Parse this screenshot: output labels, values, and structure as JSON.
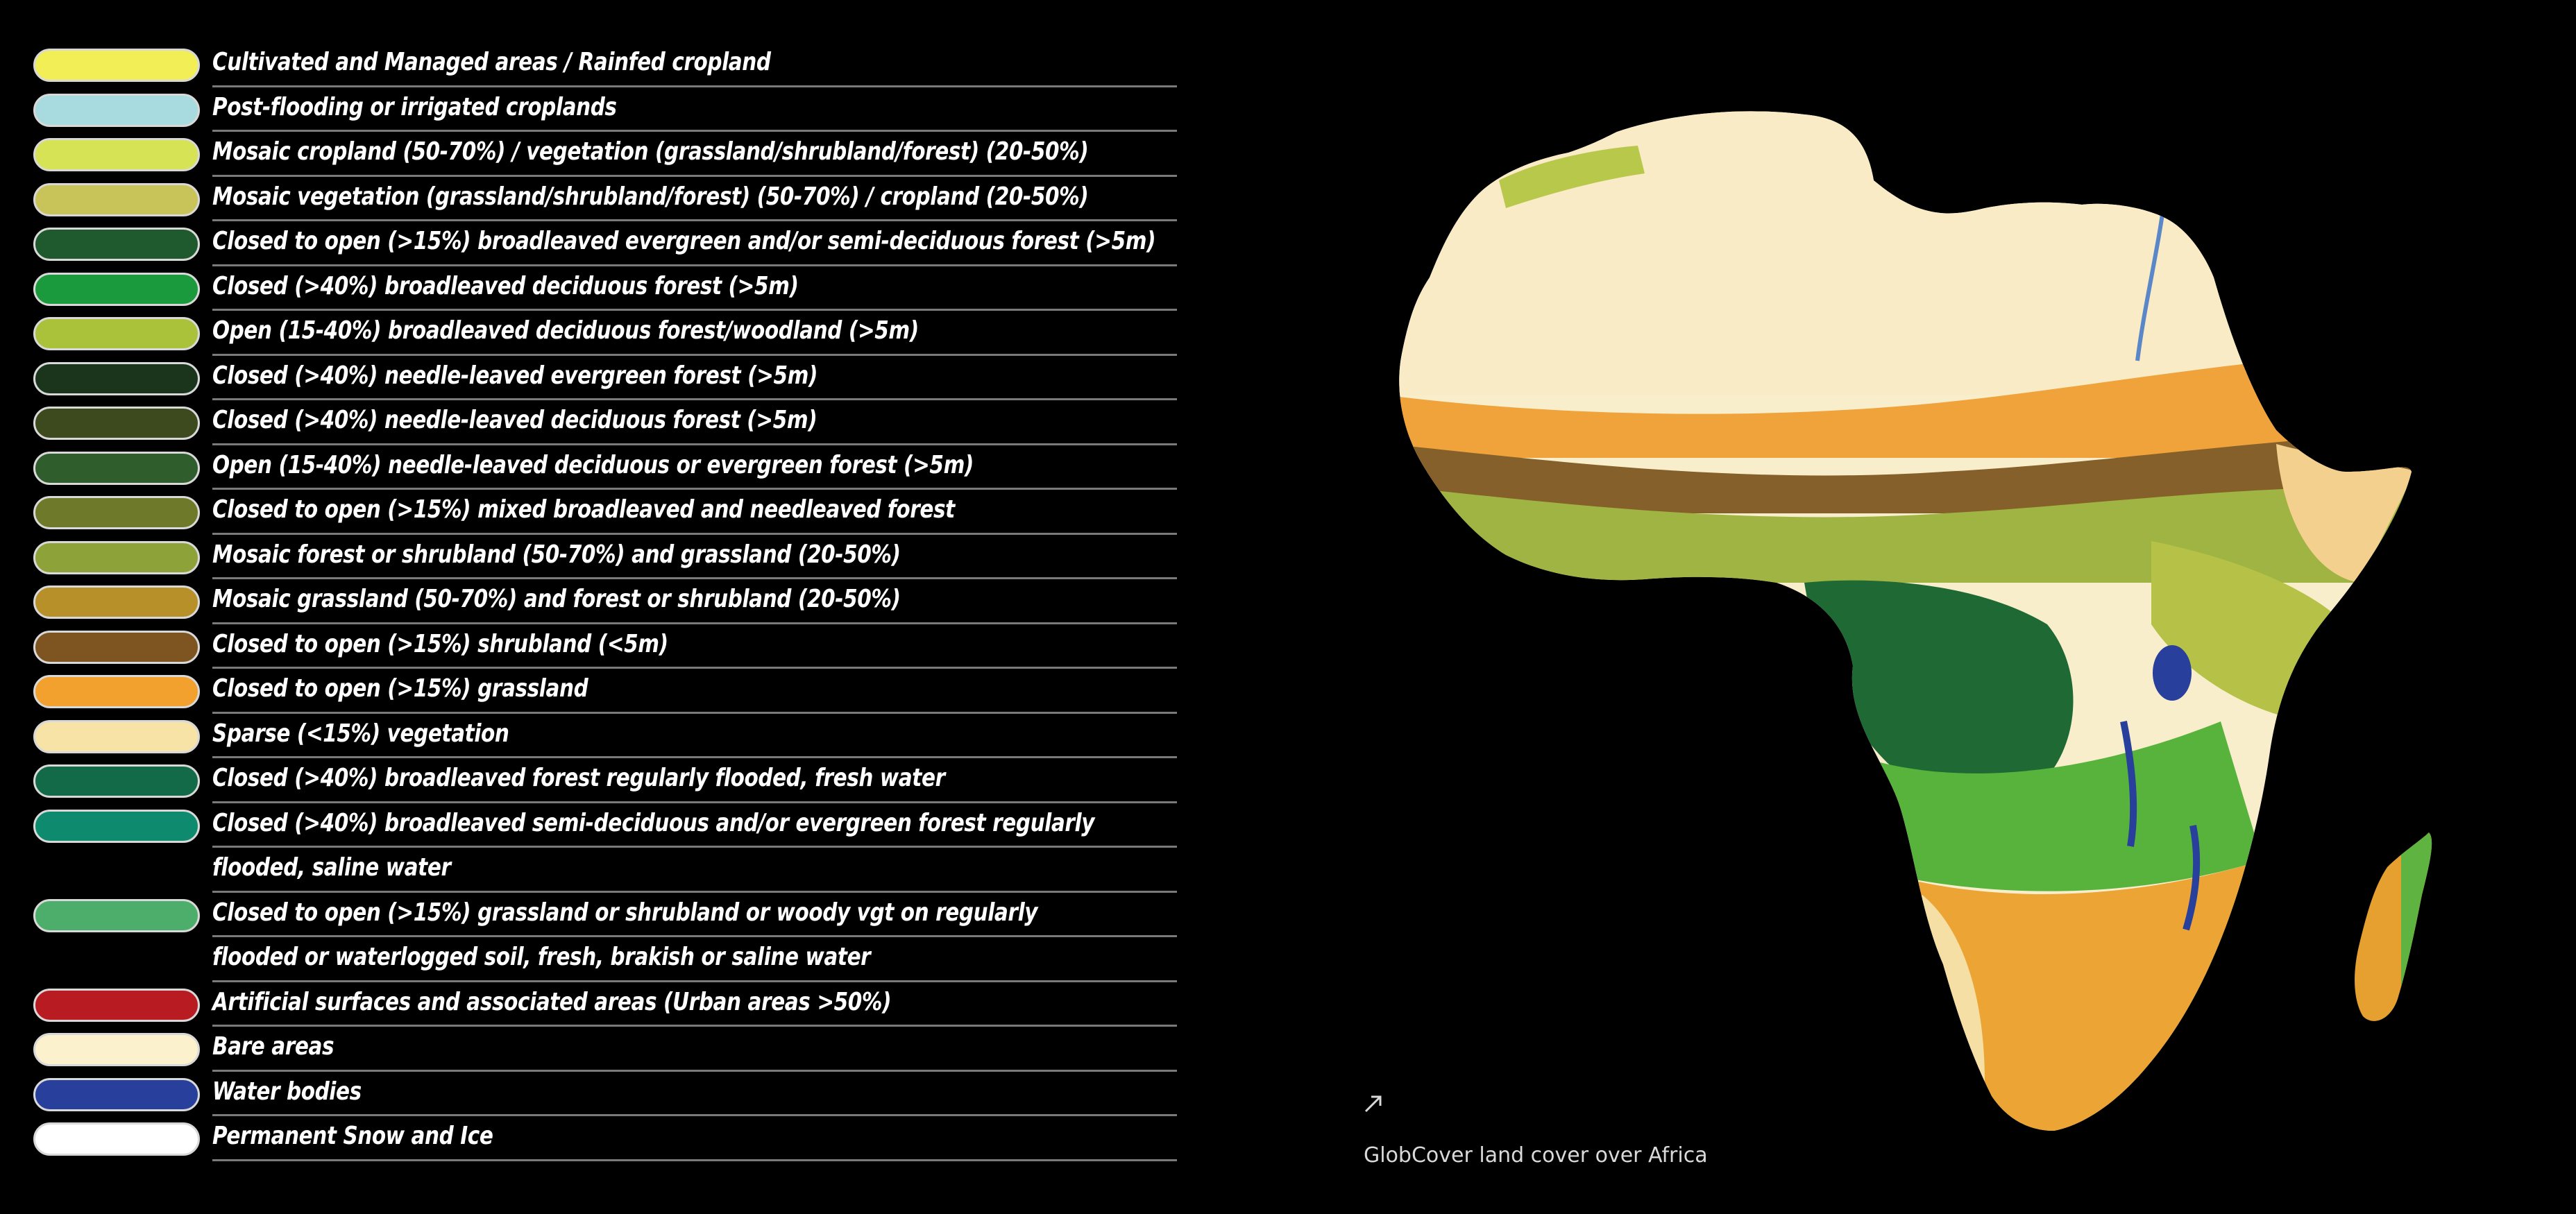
{
  "legend": [
    {
      "lines": [
        "Cultivated and Managed areas / Rainfed cropland"
      ],
      "color": "#f2ee55"
    },
    {
      "lines": [
        "Post-flooding or irrigated croplands"
      ],
      "color": "#a8dbe0"
    },
    {
      "lines": [
        "Mosaic cropland (50-70%) / vegetation (grassland/shrubland/forest) (20-50%)"
      ],
      "color": "#d6e354"
    },
    {
      "lines": [
        "Mosaic vegetation (grassland/shrubland/forest) (50-70%) / cropland (20-50%)"
      ],
      "color": "#c9c45a"
    },
    {
      "lines": [
        "Closed to open (>15%) broadleaved evergreen and/or semi-deciduous forest (>5m)"
      ],
      "color": "#1e5a2e"
    },
    {
      "lines": [
        "Closed (>40%) broadleaved deciduous forest (>5m)"
      ],
      "color": "#1a9a3c"
    },
    {
      "lines": [
        "Open (15-40%) broadleaved deciduous forest/woodland (>5m)"
      ],
      "color": "#a9c23a"
    },
    {
      "lines": [
        "Closed (>40%) needle-leaved evergreen forest (>5m)"
      ],
      "color": "#1a351c"
    },
    {
      "lines": [
        "Closed (>40%) needle-leaved deciduous forest (>5m)"
      ],
      "color": "#3c4a1e"
    },
    {
      "lines": [
        "Open (15-40%) needle-leaved deciduous or evergreen forest (>5m)"
      ],
      "color": "#2f5e2c"
    },
    {
      "lines": [
        "Closed to open (>15%) mixed broadleaved and needleaved forest"
      ],
      "color": "#6e7a2a"
    },
    {
      "lines": [
        "Mosaic forest or shrubland (50-70%) and grassland (20-50%)"
      ],
      "color": "#8ea23a"
    },
    {
      "lines": [
        "Mosaic grassland (50-70%) and forest or shrubland (20-50%)"
      ],
      "color": "#b8902a"
    },
    {
      "lines": [
        "Closed to open (>15%) shrubland (<5m)"
      ],
      "color": "#7e5420"
    },
    {
      "lines": [
        "Closed to open (>15%) grassland"
      ],
      "color": "#f2a12e"
    },
    {
      "lines": [
        "Sparse (<15%) vegetation"
      ],
      "color": "#f8e3a6"
    },
    {
      "lines": [
        "Closed (>40%) broadleaved forest regularly flooded, fresh water"
      ],
      "color": "#136a48"
    },
    {
      "lines": [
        "Closed (>40%) broadleaved semi-deciduous and/or evergreen forest regularly",
        "flooded, saline water"
      ],
      "color": "#0e8a6e"
    },
    {
      "lines": [
        "Closed to open (>15%) grassland or shrubland or woody vgt on regularly",
        "flooded or waterlogged soil, fresh, brakish or saline water"
      ],
      "color": "#4cae6a"
    },
    {
      "lines": [
        "Artificial surfaces and associated areas (Urban areas >50%)"
      ],
      "color": "#b81c22"
    },
    {
      "lines": [
        "Bare areas"
      ],
      "color": "#fbf1cc"
    },
    {
      "lines": [
        "Water bodies"
      ],
      "color": "#283f9c"
    },
    {
      "lines": [
        "Permanent Snow and Ice"
      ],
      "color": "#ffffff"
    }
  ],
  "caption": "GlobCover land cover over Africa",
  "arrow_icon": "external-link-arrow-icon"
}
